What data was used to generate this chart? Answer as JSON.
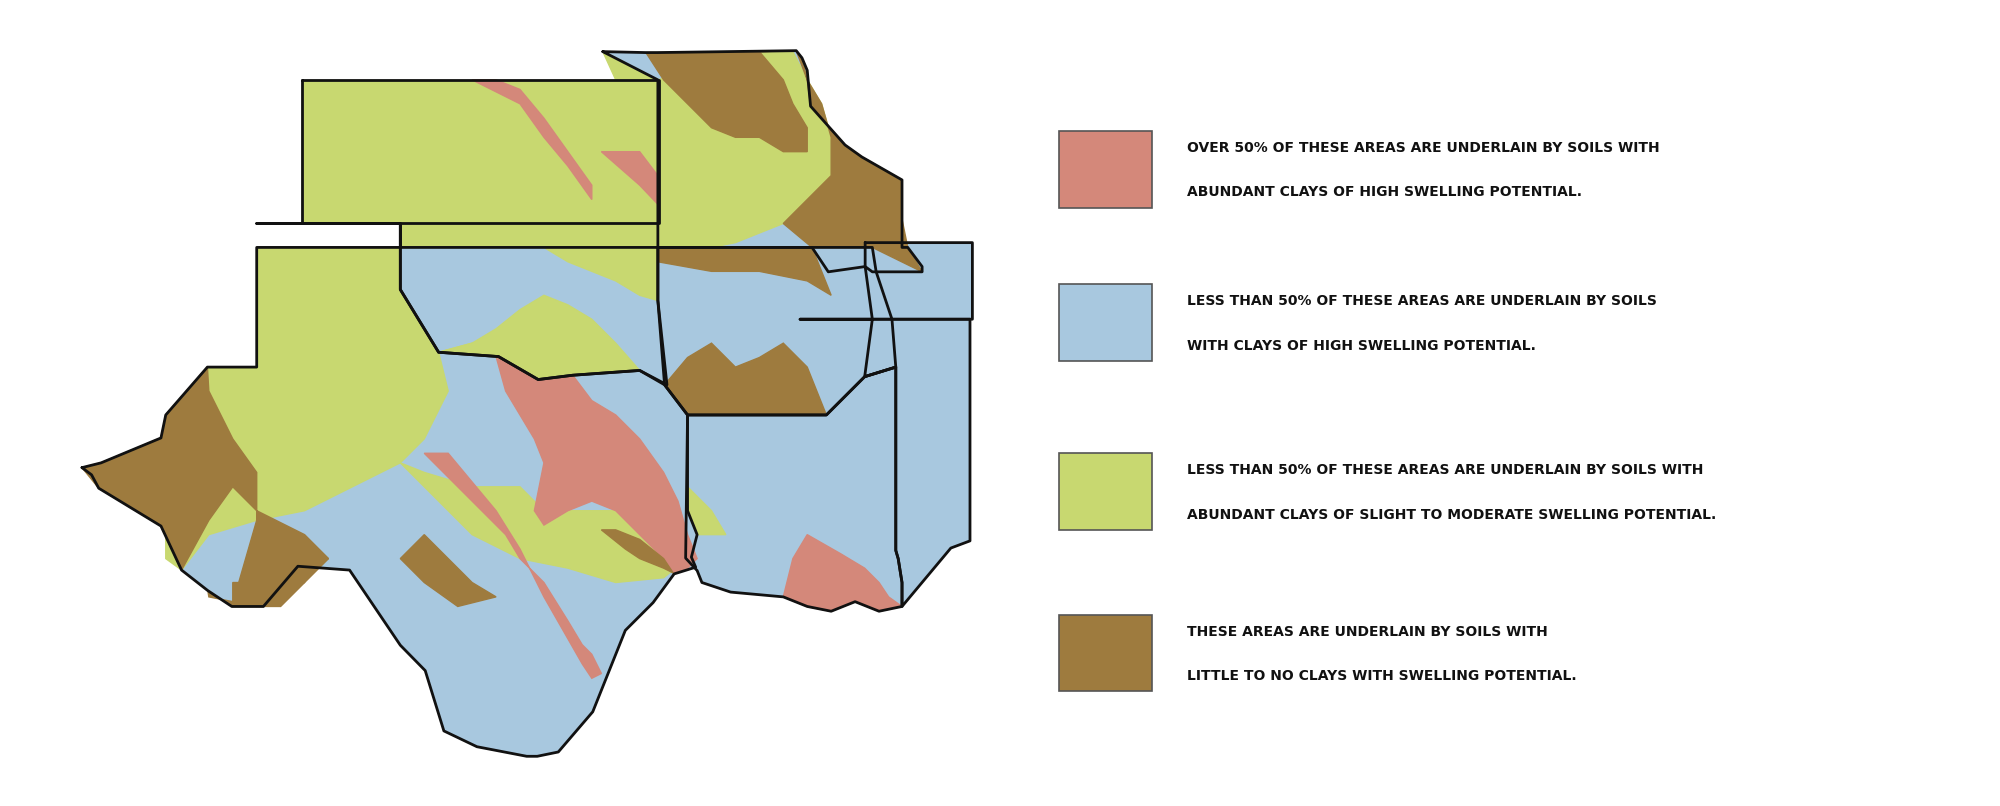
{
  "colors": {
    "pink": "#D4887A",
    "blue": "#A8C8DF",
    "green": "#C8D870",
    "brown": "#9E7B3E",
    "outline": "#111111",
    "background": "#ffffff"
  },
  "legend": [
    {
      "color": "#D4887A",
      "lines": [
        "OVER 50% OF THESE AREAS ARE UNDERLAIN BY SOILS WITH",
        "ABUNDANT CLAYS OF HIGH SWELLING POTENTIAL."
      ]
    },
    {
      "color": "#A8C8DF",
      "lines": [
        "LESS THAN 50% OF THESE AREAS ARE UNDERLAIN BY SOILS",
        "WITH CLAYS OF HIGH SWELLING POTENTIAL."
      ]
    },
    {
      "color": "#C8D870",
      "lines": [
        "LESS THAN 50% OF THESE AREAS ARE UNDERLAIN BY SOILS WITH",
        "ABUNDANT CLAYS OF SLIGHT TO MODERATE SWELLING POTENTIAL."
      ]
    },
    {
      "color": "#9E7B3E",
      "lines": [
        "THESE AREAS ARE UNDERLAIN BY SOILS WITH",
        "LITTLE TO NO CLAYS WITH SWELLING POTENTIAL."
      ]
    }
  ],
  "fig_width": 20.0,
  "fig_height": 8.06
}
